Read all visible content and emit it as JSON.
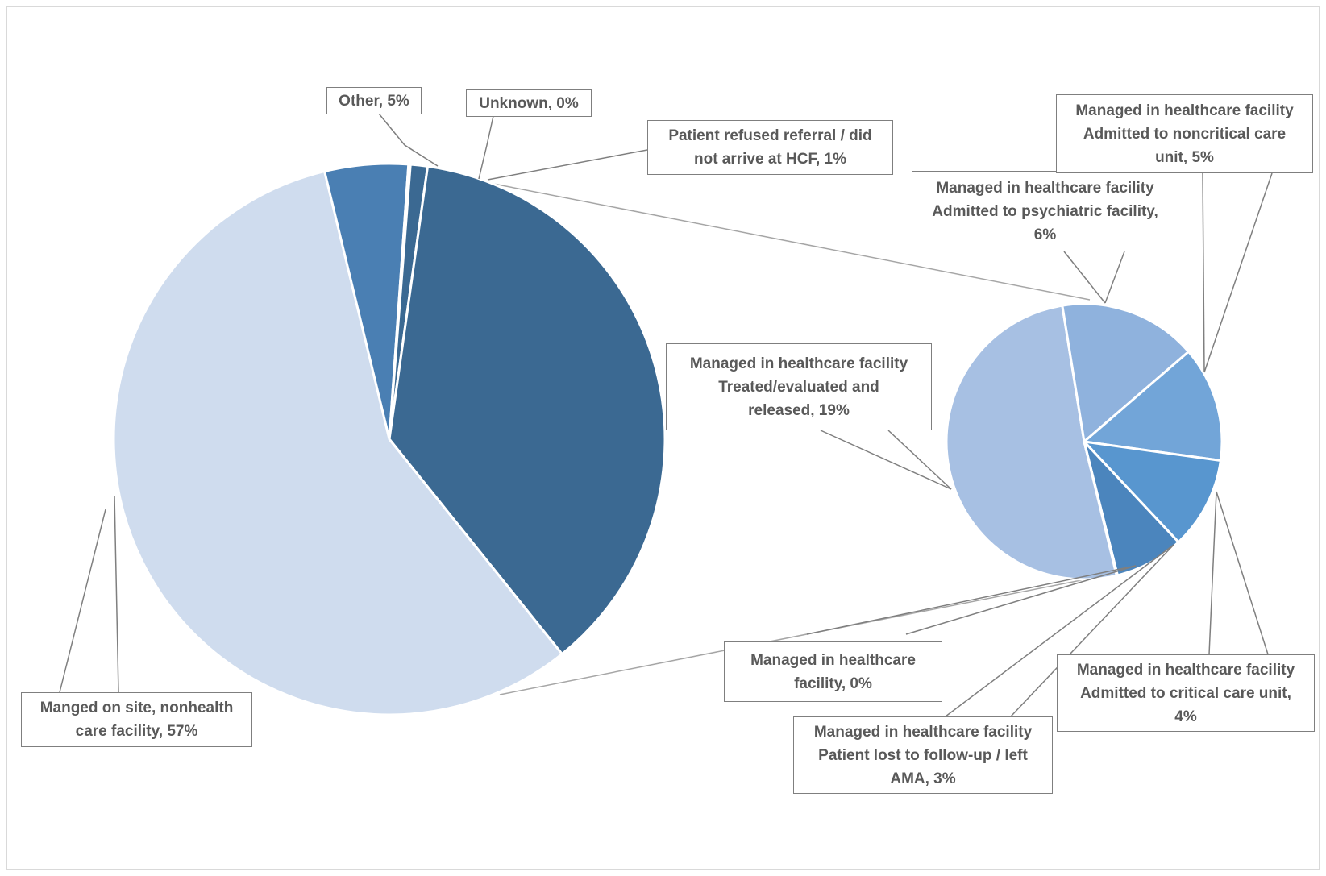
{
  "chart_data": {
    "type": "pie",
    "subtype": "pie-of-pie",
    "primary_pie": {
      "slices": [
        {
          "label": "Other",
          "value": 5,
          "display": "Other, 5%",
          "color": "#4a7fb3"
        },
        {
          "label": "Unknown",
          "value": 0,
          "display": "Unknown, 0%",
          "color": "#3b6992"
        },
        {
          "label": "Patient refused referral / did not arrive at HCF",
          "value": 1,
          "display": "Patient refused referral / did not arrive at HCF, 1%",
          "color": "#3b6992"
        },
        {
          "label": "Managed in healthcare facility",
          "value": 37,
          "display": "",
          "color": "#3b6992"
        },
        {
          "label": "Manged on site, nonhealth care facility",
          "value": 57,
          "display": "Manged on site, nonhealth care facility, 57%",
          "color": "#cfdcee"
        }
      ]
    },
    "secondary_pie": {
      "slices": [
        {
          "label": "Managed in healthcare facility Treated/evaluated and released",
          "value": 19,
          "display": "Managed in healthcare facility Treated/evaluated and released, 19%",
          "color": "#a7c0e3"
        },
        {
          "label": "Managed in healthcare facility Admitted to psychiatric facility",
          "value": 6,
          "display": "Managed in healthcare facility Admitted to psychiatric facility, 6%",
          "color": "#8fb2dd"
        },
        {
          "label": "Managed in healthcare facility Admitted to noncritical care unit",
          "value": 5,
          "display": "Managed in healthcare facility Admitted to noncritical care unit, 5%",
          "color": "#72a5d8"
        },
        {
          "label": "Managed in healthcare facility Admitted to critical care unit",
          "value": 4,
          "display": "Managed in healthcare facility Admitted to critical care unit, 4%",
          "color": "#5896cf"
        },
        {
          "label": "Managed in healthcare facility Patient lost to follow-up / left AMA",
          "value": 3,
          "display": "Managed in healthcare facility Patient lost to follow-up / left AMA, 3%",
          "color": "#4b85bd"
        },
        {
          "label": "Managed in healthcare facility",
          "value": 0,
          "display": "Managed in healthcare facility, 0%",
          "color": "#4479ad"
        }
      ]
    },
    "title": "",
    "legend": "none"
  }
}
